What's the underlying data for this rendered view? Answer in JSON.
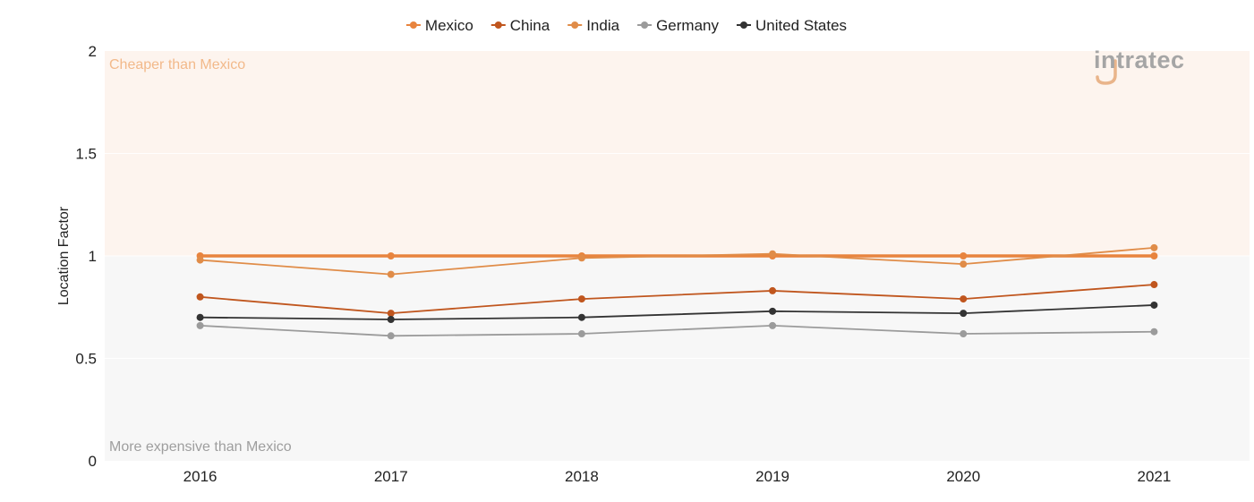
{
  "chart_data": {
    "type": "line",
    "categories": [
      "2016",
      "2017",
      "2018",
      "2019",
      "2020",
      "2021"
    ],
    "ylabel": "Location Factor",
    "ylim": [
      0,
      2
    ],
    "yticks": [
      "0",
      "0.5",
      "1",
      "1.5",
      "2"
    ],
    "zones": {
      "upper": {
        "label": "Cheaper than Mexico",
        "color": "#fdf4ee",
        "text_color": "#f2b98a"
      },
      "lower": {
        "label": "More expensive than Mexico",
        "color": "#f7f7f7",
        "text_color": "#9e9e9e"
      }
    },
    "legend_position": "top-center",
    "series": [
      {
        "name": "Mexico",
        "color": "#e8843e",
        "values": [
          1.0,
          1.0,
          1.0,
          1.0,
          1.0,
          1.0
        ]
      },
      {
        "name": "China",
        "color": "#c0561e",
        "values": [
          0.8,
          0.72,
          0.79,
          0.83,
          0.79,
          0.86
        ]
      },
      {
        "name": "India",
        "color": "#e08c48",
        "values": [
          0.98,
          0.91,
          0.99,
          1.01,
          0.96,
          1.04
        ]
      },
      {
        "name": "Germany",
        "color": "#9b9b9b",
        "values": [
          0.66,
          0.61,
          0.62,
          0.66,
          0.62,
          0.63
        ]
      },
      {
        "name": "United States",
        "color": "#333333",
        "values": [
          0.7,
          0.69,
          0.7,
          0.73,
          0.72,
          0.76
        ]
      }
    ]
  },
  "logo": {
    "text": "intratec",
    "color": "#a5a5a5",
    "accent": "#e9b48a"
  }
}
